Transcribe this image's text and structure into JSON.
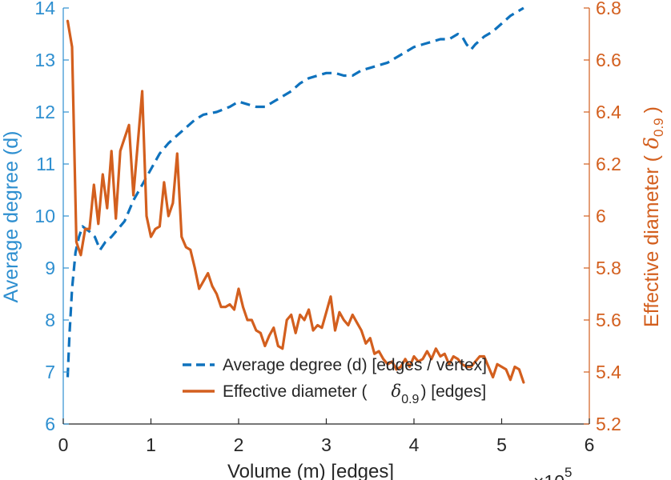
{
  "chart_data": {
    "type": "line",
    "xlabel": "Volume (m) [edges]",
    "x_exponent_label": "×10",
    "x_exponent_power": "5",
    "xlim": [
      0,
      6
    ],
    "xticks": [
      "0",
      "1",
      "2",
      "3",
      "4",
      "5",
      "6"
    ],
    "ylabel_left": "Average degree (d)",
    "ylim_left": [
      6,
      14
    ],
    "yticks_left": [
      "6",
      "7",
      "8",
      "9",
      "10",
      "11",
      "12",
      "13",
      "14"
    ],
    "ylabel_right_prefix": "Effective diameter (",
    "ylabel_right_symbol": "δ",
    "ylabel_right_subscript": "0.9",
    "ylabel_right_suffix": ")",
    "ylim_right": [
      5.2,
      6.8
    ],
    "yticks_right": [
      "5.2",
      "5.4",
      "5.6",
      "5.8",
      "6",
      "6.2",
      "6.4",
      "6.6",
      "6.8"
    ],
    "colors": {
      "blue": "#2e8fd0",
      "orange": "#d35f1e",
      "axis": "#262626"
    },
    "series": [
      {
        "name": "Average degree (d) [edges / vertex]",
        "axis": "left",
        "style": "dashed",
        "color": "#0f72bd",
        "x": [
          0.05,
          0.07,
          0.1,
          0.14,
          0.18,
          0.22,
          0.3,
          0.36,
          0.42,
          0.48,
          0.55,
          0.6,
          0.7,
          0.8,
          0.9,
          1.0,
          1.1,
          1.2,
          1.3,
          1.4,
          1.5,
          1.6,
          1.75,
          1.9,
          2.0,
          2.1,
          2.2,
          2.3,
          2.4,
          2.5,
          2.6,
          2.7,
          2.8,
          2.9,
          3.0,
          3.1,
          3.2,
          3.3,
          3.4,
          3.5,
          3.6,
          3.7,
          3.8,
          3.9,
          4.0,
          4.1,
          4.2,
          4.3,
          4.4,
          4.5,
          4.55,
          4.6,
          4.65,
          4.7,
          4.8,
          4.9,
          5.0,
          5.1,
          5.2,
          5.25
        ],
        "y": [
          6.9,
          7.7,
          8.6,
          9.3,
          9.6,
          9.8,
          9.7,
          9.6,
          9.35,
          9.5,
          9.6,
          9.7,
          9.9,
          10.3,
          10.6,
          10.9,
          11.2,
          11.4,
          11.55,
          11.7,
          11.85,
          11.95,
          12.0,
          12.1,
          12.2,
          12.15,
          12.1,
          12.1,
          12.2,
          12.3,
          12.4,
          12.55,
          12.65,
          12.7,
          12.75,
          12.75,
          12.7,
          12.7,
          12.8,
          12.85,
          12.9,
          12.95,
          13.05,
          13.15,
          13.25,
          13.3,
          13.35,
          13.4,
          13.4,
          13.5,
          13.45,
          13.3,
          13.2,
          13.3,
          13.45,
          13.55,
          13.7,
          13.85,
          13.95,
          14.0
        ]
      },
      {
        "name": "Effective diameter (δ0.9) [edges]",
        "axis": "right",
        "style": "solid",
        "color": "#d35f1e",
        "x": [
          0.05,
          0.1,
          0.15,
          0.2,
          0.25,
          0.3,
          0.35,
          0.4,
          0.45,
          0.5,
          0.55,
          0.6,
          0.65,
          0.7,
          0.75,
          0.8,
          0.85,
          0.9,
          0.95,
          1.0,
          1.05,
          1.1,
          1.15,
          1.2,
          1.25,
          1.3,
          1.35,
          1.4,
          1.45,
          1.5,
          1.55,
          1.6,
          1.65,
          1.7,
          1.75,
          1.8,
          1.85,
          1.9,
          1.95,
          2.0,
          2.05,
          2.1,
          2.15,
          2.2,
          2.25,
          2.3,
          2.35,
          2.4,
          2.45,
          2.5,
          2.55,
          2.6,
          2.65,
          2.7,
          2.75,
          2.8,
          2.85,
          2.9,
          2.95,
          3.0,
          3.05,
          3.1,
          3.15,
          3.2,
          3.25,
          3.3,
          3.35,
          3.4,
          3.45,
          3.5,
          3.55,
          3.6,
          3.65,
          3.7,
          3.75,
          3.8,
          3.85,
          3.9,
          3.95,
          4.0,
          4.05,
          4.1,
          4.15,
          4.2,
          4.25,
          4.3,
          4.35,
          4.4,
          4.45,
          4.5,
          4.55,
          4.6,
          4.65,
          4.7,
          4.75,
          4.8,
          4.85,
          4.9,
          4.95,
          5.0,
          5.05,
          5.1,
          5.15,
          5.2,
          5.25
        ],
        "y": [
          6.75,
          6.65,
          5.9,
          5.85,
          5.95,
          5.95,
          6.12,
          5.97,
          6.16,
          6.03,
          6.25,
          5.99,
          6.25,
          6.3,
          6.35,
          6.08,
          6.28,
          6.48,
          6.0,
          5.92,
          5.95,
          5.96,
          6.13,
          6.0,
          6.05,
          6.24,
          5.92,
          5.88,
          5.87,
          5.8,
          5.72,
          5.75,
          5.78,
          5.73,
          5.7,
          5.65,
          5.65,
          5.66,
          5.64,
          5.72,
          5.65,
          5.6,
          5.6,
          5.56,
          5.55,
          5.5,
          5.54,
          5.57,
          5.5,
          5.49,
          5.6,
          5.62,
          5.55,
          5.62,
          5.6,
          5.64,
          5.56,
          5.58,
          5.57,
          5.63,
          5.69,
          5.56,
          5.63,
          5.6,
          5.58,
          5.62,
          5.59,
          5.56,
          5.51,
          5.53,
          5.47,
          5.48,
          5.45,
          5.43,
          5.44,
          5.41,
          5.42,
          5.45,
          5.42,
          5.46,
          5.44,
          5.45,
          5.48,
          5.45,
          5.49,
          5.46,
          5.47,
          5.43,
          5.46,
          5.45,
          5.43,
          5.42,
          5.42,
          5.44,
          5.46,
          5.46,
          5.42,
          5.38,
          5.43,
          5.42,
          5.41,
          5.37,
          5.42,
          5.41,
          5.36
        ]
      }
    ],
    "legend": {
      "position": "bottom-center",
      "entries": [
        {
          "prefix": "Average degree (d) [edges / vertex]",
          "symbol": "",
          "subscript": "",
          "suffix": ""
        },
        {
          "prefix": "Effective diameter (",
          "symbol": "δ",
          "subscript": "0.9",
          "suffix": ") [edges]"
        }
      ]
    }
  }
}
